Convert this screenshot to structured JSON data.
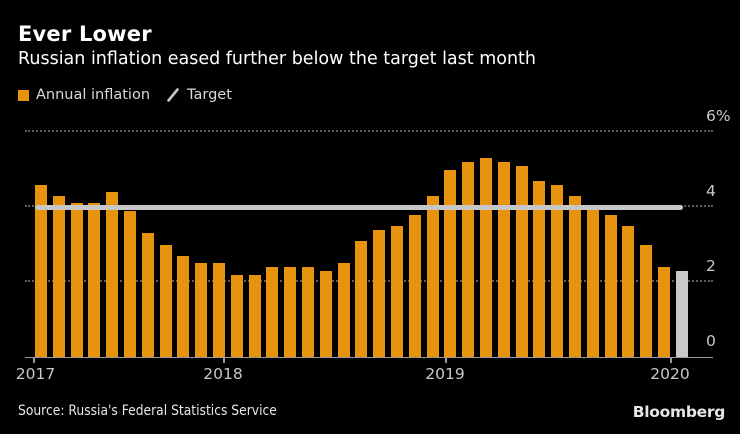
{
  "header": {
    "title": "Ever Lower",
    "subtitle": "Russian inflation eased further below the target last month"
  },
  "legend": {
    "series_label": "Annual inflation",
    "target_label": "Target"
  },
  "footer": {
    "source": "Source: Russia's Federal Statistics Service",
    "brand": "Bloomberg"
  },
  "colors": {
    "background": "#000000",
    "bar": "#E8930D",
    "bar_latest": "#C9C9C9",
    "target_line": "#C7C7C7",
    "grid_dot": "#5D5D5D",
    "axis_line": "#9B9B9B",
    "text_primary": "#FFFFFF",
    "text_legend": "#D9D9D9",
    "text_axis": "#C8C8C8",
    "text_source": "#E6E6E6"
  },
  "chart_data": {
    "type": "bar",
    "title": "Ever Lower",
    "subtitle": "Russian inflation eased further below the target last month",
    "series_name": "Annual inflation",
    "unit": "%",
    "x": [
      "Feb 2017",
      "Mar 2017",
      "Apr 2017",
      "May 2017",
      "Jun 2017",
      "Jul 2017",
      "Aug 2017",
      "Sep 2017",
      "Oct 2017",
      "Nov 2017",
      "Dec 2017",
      "Jan 2018",
      "Feb 2018",
      "Mar 2018",
      "Apr 2018",
      "May 2018",
      "Jun 2018",
      "Jul 2018",
      "Aug 2018",
      "Sep 2018",
      "Oct 2018",
      "Nov 2018",
      "Dec 2018",
      "Jan 2019",
      "Feb 2019",
      "Mar 2019",
      "Apr 2019",
      "May 2019",
      "Jun 2019",
      "Jul 2019",
      "Aug 2019",
      "Sep 2019",
      "Oct 2019",
      "Nov 2019",
      "Dec 2019",
      "Jan 2020",
      "Feb 2020"
    ],
    "values": [
      4.6,
      4.3,
      4.1,
      4.1,
      4.4,
      3.9,
      3.3,
      3.0,
      2.7,
      2.5,
      2.5,
      2.2,
      2.2,
      2.4,
      2.4,
      2.4,
      2.3,
      2.5,
      3.1,
      3.4,
      3.5,
      3.8,
      4.3,
      5.0,
      5.2,
      5.3,
      5.2,
      5.1,
      4.7,
      4.6,
      4.3,
      4.0,
      3.8,
      3.5,
      3.0,
      2.4,
      2.3
    ],
    "target_name": "Target",
    "target_value": 4.0,
    "latest_bar_highlighted": true,
    "ylim": [
      0,
      6.3
    ],
    "yticks": [
      {
        "value": 0,
        "label": "0"
      },
      {
        "value": 2,
        "label": "2"
      },
      {
        "value": 4,
        "label": "4"
      },
      {
        "value": 6,
        "label": "6%"
      }
    ],
    "xticks": [
      {
        "label": "2017",
        "at": "Feb 2017"
      },
      {
        "label": "2018",
        "at": "Jan 2018"
      },
      {
        "label": "2019",
        "at": "Jan 2019"
      },
      {
        "label": "2020",
        "at": "Jan 2020"
      }
    ],
    "grid": "horizontal-dotted",
    "legend_position": "top-left",
    "y_axis_side": "right"
  }
}
